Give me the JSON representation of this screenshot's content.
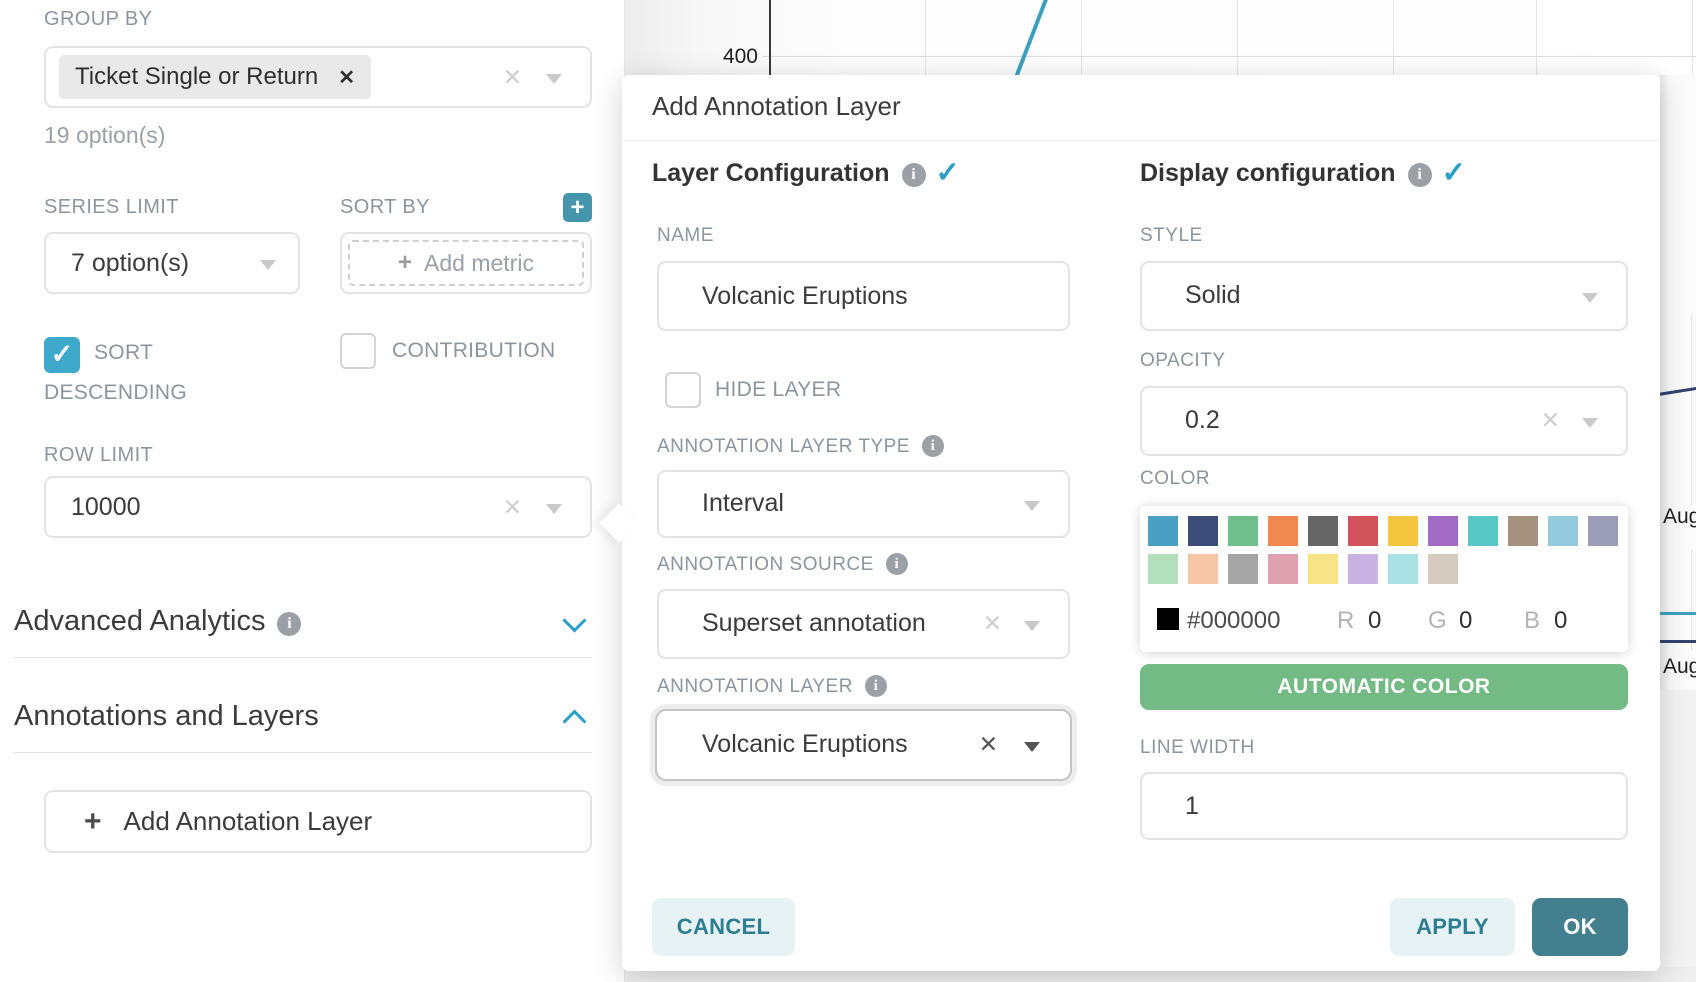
{
  "left_panel": {
    "group_by": {
      "label": "GROUP BY",
      "tag": "Ticket Single or Return",
      "helper": "19 option(s)"
    },
    "series_limit": {
      "label": "SERIES LIMIT",
      "value": "7 option(s)"
    },
    "sort_by": {
      "label": "SORT BY",
      "add_metric": "Add metric"
    },
    "sort_descending_label": "SORT DESCENDING",
    "contribution_label": "CONTRIBUTION",
    "row_limit": {
      "label": "ROW LIMIT",
      "value": "10000"
    },
    "advanced_analytics_label": "Advanced Analytics",
    "annotations_layers_label": "Annotations and Layers",
    "add_annotation_button": "Add Annotation Layer"
  },
  "background_chart": {
    "type": "line",
    "y_tick": "400",
    "x_tick_1": "Aug",
    "x_tick_2": "Aug",
    "line_colors": {
      "blue": "#3d9fc0",
      "navy": "#32426e"
    }
  },
  "popover": {
    "title": "Add Annotation Layer",
    "layer_configuration": {
      "heading": "Layer Configuration",
      "name_label": "NAME",
      "name_value": "Volcanic Eruptions",
      "hide_layer_label": "HIDE LAYER",
      "type_label": "ANNOTATION LAYER TYPE",
      "type_value": "Interval",
      "source_label": "ANNOTATION SOURCE",
      "source_value": "Superset annotation",
      "layer_label": "ANNOTATION LAYER",
      "layer_value": "Volcanic Eruptions"
    },
    "display_configuration": {
      "heading": "Display configuration",
      "style_label": "STYLE",
      "style_value": "Solid",
      "opacity_label": "OPACITY",
      "opacity_value": "0.2",
      "color_label": "COLOR",
      "color_picker": {
        "row1": [
          "#4aa0c4",
          "#3d4d7a",
          "#6fbe8c",
          "#ef8950",
          "#666666",
          "#d2545d",
          "#f4c63f",
          "#a36bc3",
          "#58c6c5",
          "#a4927d",
          "#93cade",
          "#9a9cb8"
        ],
        "row2": [
          "#b2dfbc",
          "#f6c5a5",
          "#a5a5a5",
          "#dfa1af",
          "#f8e487",
          "#c9b1e3",
          "#a9e0e6",
          "#d4cabe"
        ],
        "hex": "#000000",
        "r_label": "R",
        "r_value": "0",
        "g_label": "G",
        "g_value": "0",
        "b_label": "B",
        "b_value": "0"
      },
      "automatic_color_button": "AUTOMATIC COLOR",
      "line_width_label": "LINE WIDTH",
      "line_width_value": "1"
    },
    "footer": {
      "cancel": "CANCEL",
      "apply": "APPLY",
      "ok": "OK"
    }
  },
  "colors": {
    "primary_teal": "#2b9ec7",
    "checkbox_checked": "#3fa9cb",
    "plus_button": "#4596ad",
    "ok_button": "#43808f",
    "secondary_button_bg": "#e7f2f5",
    "secondary_button_text": "#2e7d92",
    "automatic_color_green": "#74ba85"
  }
}
